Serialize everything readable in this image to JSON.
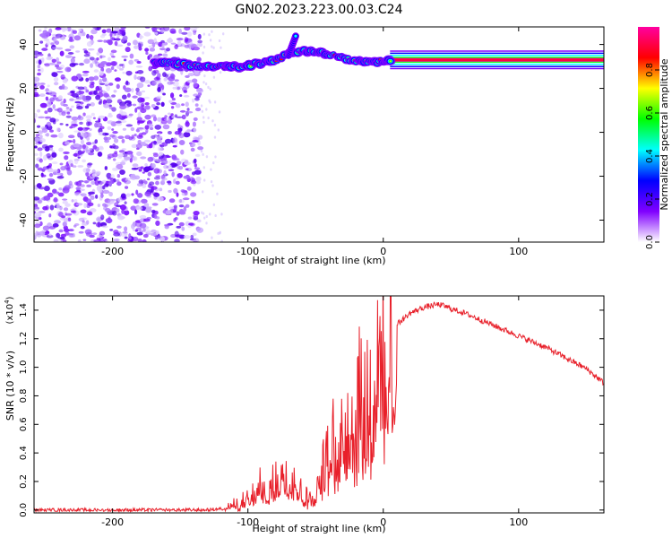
{
  "title": "GN02.2023.223.00.03.C24",
  "chart_data": [
    {
      "type": "heatmap",
      "xlabel": "Height of straight line (km)",
      "ylabel": "Frequency (Hz)",
      "xlim": [
        -258,
        163
      ],
      "ylim": [
        -50,
        48
      ],
      "xticks": [
        -200,
        -100,
        0,
        100
      ],
      "yticks": [
        -40,
        -20,
        0,
        20,
        40
      ],
      "colorbar": {
        "label": "Normalized spectral amplitude",
        "range": [
          0.0,
          1.0
        ],
        "ticks": [
          0.0,
          0.2,
          0.4,
          0.6,
          0.8
        ],
        "colormap": [
          "#ffffff",
          "#8000ff",
          "#0000ff",
          "#00ffff",
          "#00ff00",
          "#ffff00",
          "#ff0000",
          "#ff00a0"
        ]
      },
      "features": {
        "noise_region_x": [
          -258,
          -135
        ],
        "sparse_noise_x": [
          -135,
          -118
        ],
        "signal_trace": {
          "x": [
            -170,
            -150,
            -135,
            -120,
            -105,
            -95,
            -85,
            -75,
            -70,
            -62,
            -55,
            -45,
            -35,
            -25,
            -15,
            -5,
            5,
            163
          ],
          "y": [
            32,
            31,
            30,
            30,
            30,
            31,
            32,
            34,
            36,
            37,
            37,
            36,
            35,
            33,
            32,
            32,
            33,
            33
          ]
        },
        "spike_x": -70,
        "spike_y": [
          35,
          44
        ]
      }
    },
    {
      "type": "line",
      "xlabel": "Height of straight line (km)",
      "ylabel": "SNR (10 * v/v)",
      "scale_label": "(x10",
      "scale_exp": "4",
      "y_unit": "x10^4",
      "xlim": [
        -258,
        163
      ],
      "ylim": [
        -0.02,
        1.5
      ],
      "xticks": [
        -200,
        -100,
        0,
        100
      ],
      "yticks": [
        0.0,
        0.2,
        0.4,
        0.6,
        0.8,
        1.0,
        1.2,
        1.4
      ],
      "ytick_labels": [
        "0.0",
        "0.2",
        "0.4",
        "0.6",
        "0.8",
        "1.0",
        "1.2",
        "1.4"
      ],
      "color": "#e8202a",
      "series": [
        {
          "x": [
            -258,
            -240,
            -220,
            -200,
            -180,
            -160,
            -140,
            -130,
            -120,
            -115,
            -110,
            -105,
            -100,
            -95,
            -90,
            -85,
            -80,
            -75,
            -70,
            -65,
            -60,
            -55,
            -50,
            -45,
            -40,
            -35,
            -30,
            -25,
            -20,
            -15,
            -10,
            -5,
            0,
            5,
            10,
            15,
            20,
            25,
            30,
            35,
            40,
            45,
            50,
            60,
            70,
            80,
            90,
            100,
            110,
            120,
            130,
            140,
            150,
            163
          ],
          "y": [
            0.0,
            0.0,
            0.0,
            0.0,
            0.0,
            0.0,
            0.0,
            0.0,
            0.01,
            0.02,
            0.04,
            0.05,
            0.07,
            0.12,
            0.18,
            0.1,
            0.22,
            0.26,
            0.3,
            0.24,
            0.12,
            0.08,
            0.1,
            0.28,
            0.45,
            0.52,
            0.6,
            0.68,
            0.78,
            0.88,
            0.95,
            1.02,
            1.12,
            1.22,
            1.3,
            1.34,
            1.38,
            1.4,
            1.42,
            1.43,
            1.44,
            1.43,
            1.41,
            1.38,
            1.34,
            1.3,
            1.26,
            1.22,
            1.18,
            1.14,
            1.09,
            1.04,
            0.99,
            0.89
          ]
        }
      ]
    }
  ]
}
